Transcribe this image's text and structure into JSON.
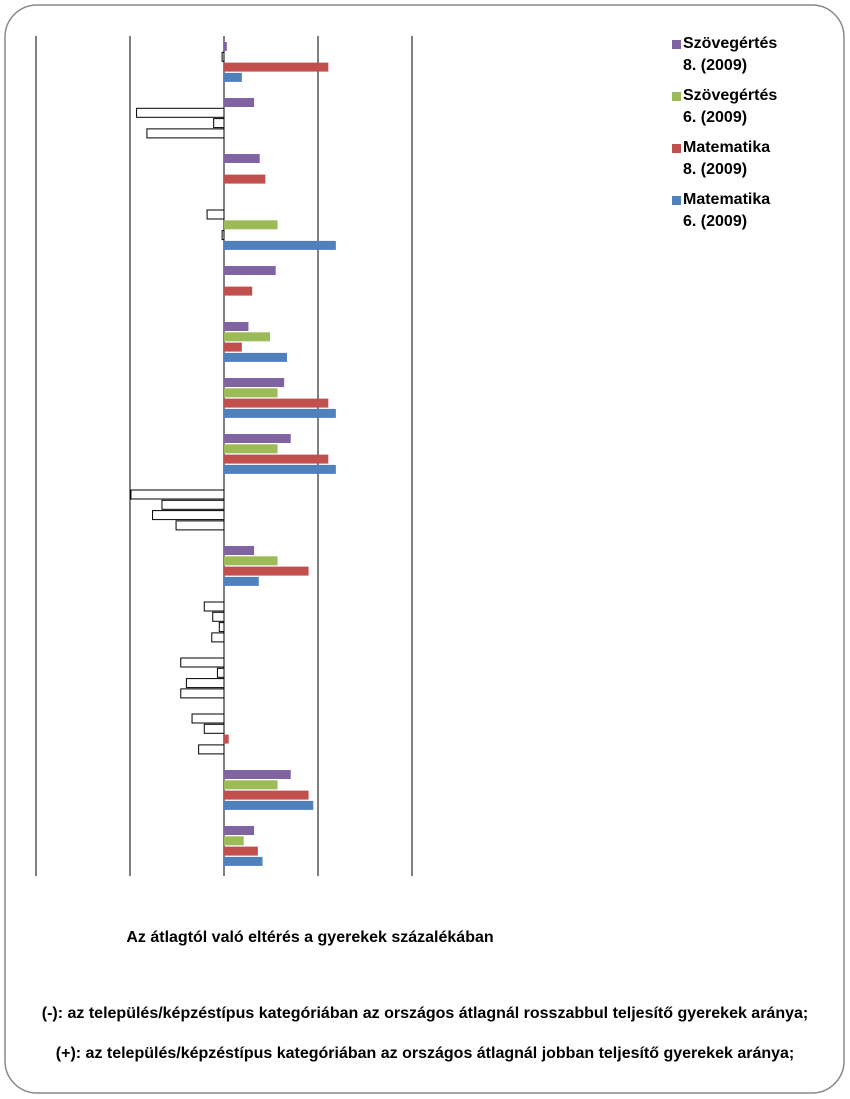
{
  "chart_data": {
    "type": "bar",
    "orientation": "horizontal",
    "categories": [
      null,
      null,
      null,
      null,
      null,
      null,
      null,
      null,
      null,
      null,
      null,
      null,
      null,
      null,
      null
    ],
    "series": [
      {
        "name": "Szövegértés 8. (2009)",
        "color": "#8064a2",
        "values": [
          0.3,
          3.2,
          3.8,
          -1.8,
          5.5,
          2.6,
          6.4,
          7.1,
          -9.9,
          3.2,
          -2.1,
          -4.6,
          -3.4,
          7.1,
          3.2
        ]
      },
      {
        "name": "Szövegértés 6. (2009)",
        "color": "#9bbb59",
        "values": [
          -0.2,
          -9.3,
          0,
          5.7,
          0,
          4.9,
          5.7,
          5.7,
          -6.6,
          5.7,
          -1.2,
          -0.7,
          -2.1,
          5.7,
          2.1
        ]
      },
      {
        "name": "Matematika 8. (2009)",
        "color": "#c0504d",
        "values": [
          11.1,
          -1.1,
          4.4,
          -0.2,
          3.0,
          1.9,
          11.1,
          11.1,
          -7.6,
          9.0,
          -0.5,
          -4.0,
          0.5,
          9.0,
          3.6
        ]
      },
      {
        "name": "Matematika 6. (2009)",
        "color": "#4f81bd",
        "values": [
          1.9,
          -8.2,
          0,
          11.9,
          0,
          6.7,
          11.9,
          11.9,
          -5.1,
          3.7,
          -1.3,
          -4.6,
          -2.7,
          9.5,
          4.1
        ]
      }
    ],
    "negative_fill": "#ffffff",
    "xlim": [
      -20,
      20
    ],
    "xticks": [
      -20,
      -10,
      0,
      10,
      20
    ],
    "grid": true,
    "legend_position": "top-right",
    "x_axis_label": "Az átlagtól való eltérés a gyerekek százalékában",
    "notes": [
      "(-): az település/képzéstípus kategóriában az országos átlagnál rosszabbul teljesítő gyerekek aránya;",
      "(+): az település/képzéstípus kategóriában az országos átlagnál jobban teljesítő gyerekek aránya;"
    ]
  }
}
